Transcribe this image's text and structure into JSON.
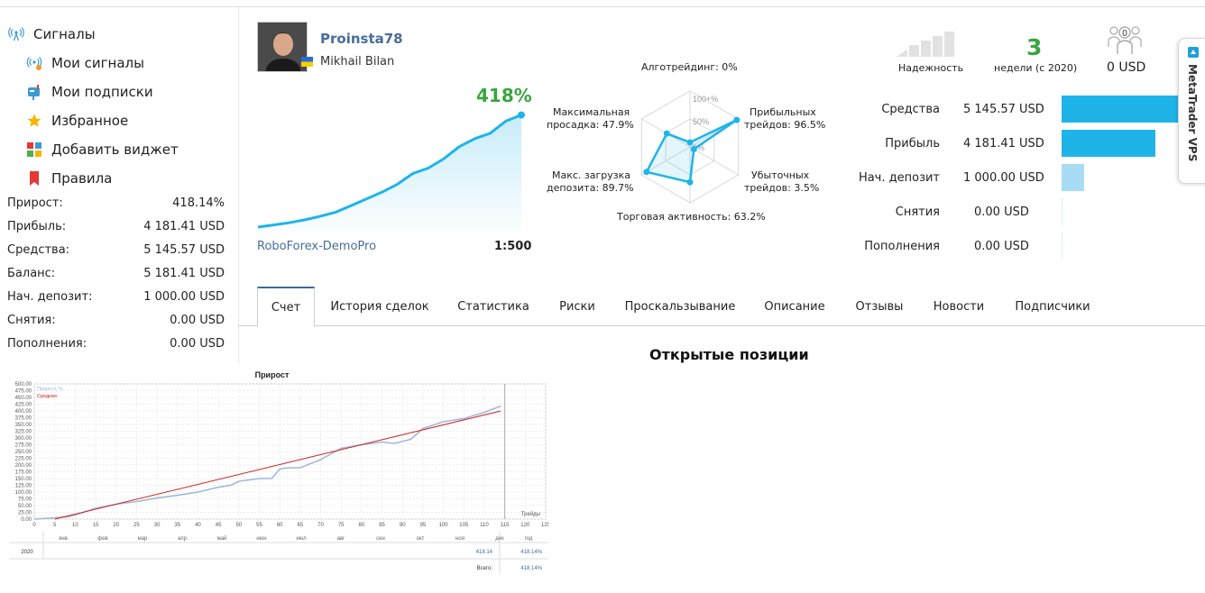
{
  "nav": {
    "signals": "Сигналы",
    "my_signals": "Мои сигналы",
    "my_subscriptions": "Мои подписки",
    "favorites": "Избранное",
    "add_widget": "Добавить виджет",
    "rules": "Правила"
  },
  "left_stats": [
    {
      "label": "Прирост:",
      "value": "418.14%"
    },
    {
      "label": "Прибыль:",
      "value": "4 181.41 USD"
    },
    {
      "label": "Средства:",
      "value": "5 145.57 USD"
    },
    {
      "label": "Баланс:",
      "value": "5 181.41 USD"
    },
    {
      "label": "Нач. депозит:",
      "value": "1 000.00 USD"
    },
    {
      "label": "Снятия:",
      "value": "0.00 USD"
    },
    {
      "label": "Пополнения:",
      "value": "0.00 USD"
    }
  ],
  "profile": {
    "username": "Proinsta78",
    "real_name": "Mikhail Bilan",
    "growth": "418%",
    "broker": "RoboForex-DemoPro",
    "leverage": "1:500"
  },
  "mini_chart": {
    "values": [
      0,
      8,
      16,
      27,
      40,
      55,
      80,
      105,
      130,
      160,
      200,
      220,
      255,
      300,
      330,
      350,
      395,
      418
    ]
  },
  "radar": {
    "algo": "Алготрейдинг: 0%",
    "profit_trades_1": "Прибыльных",
    "profit_trades_2": "трейдов: 96.5%",
    "loss_trades_1": "Убыточных",
    "loss_trades_2": "трейдов: 3.5%",
    "activity": "Торговая активность: 63.2%",
    "load_1": "Макс. загрузка",
    "load_2": "депозита: 89.7%",
    "drawdown_1": "Максимальная",
    "drawdown_2": "просадка: 47.9%",
    "scale_100": "100+%",
    "scale_50": "50%",
    "scale_0": "0%",
    "values": [
      0,
      96.5,
      3.5,
      63.2,
      89.7,
      47.9
    ]
  },
  "reliability": {
    "label": "Надежность",
    "level": 0
  },
  "weeks": {
    "value": "3",
    "label": "недели (с 2020)"
  },
  "subscribers": {
    "count": "0",
    "amount": "0 USD"
  },
  "finance": [
    {
      "label": "Средства",
      "value": "5 145.57 USD",
      "fraction": 1.0,
      "color": "#1fb4e8"
    },
    {
      "label": "Прибыль",
      "value": "4 181.41 USD",
      "fraction": 0.81,
      "color": "#1fb4e8"
    },
    {
      "label": "Нач. депозит",
      "value": "1 000.00 USD",
      "fraction": 0.19,
      "color": "#a7dcf4"
    },
    {
      "label": "Снятия",
      "value": "0.00 USD",
      "fraction": 0,
      "color": "#a7dcf4"
    },
    {
      "label": "Пополнения",
      "value": "0.00 USD",
      "fraction": 0,
      "color": "#a7dcf4"
    }
  ],
  "vps": {
    "label": "MetaTrader VPS"
  },
  "tabs": [
    {
      "label": "Счет",
      "active": true
    },
    {
      "label": "История сделок"
    },
    {
      "label": "Статистика"
    },
    {
      "label": "Риски"
    },
    {
      "label": "Проскальзывание"
    },
    {
      "label": "Описание"
    },
    {
      "label": "Отзывы"
    },
    {
      "label": "Новости"
    },
    {
      "label": "Подписчики"
    }
  ],
  "section_title": "Открытые позиции",
  "chart_data": {
    "type": "line",
    "title": "Прирост",
    "xlabel": "Трейды",
    "ylim": [
      0,
      500
    ],
    "xlim": [
      0,
      125
    ],
    "yticks": [
      "0.00",
      "25.00",
      "50.00",
      "75.00",
      "100.00",
      "125.00",
      "150.00",
      "175.00",
      "200.00",
      "225.00",
      "250.00",
      "275.00",
      "300.00",
      "325.00",
      "350.00",
      "375.00",
      "400.00",
      "425.00",
      "450.00",
      "475.00",
      "500.00"
    ],
    "xticks": [
      "0",
      "5",
      "10",
      "15",
      "20",
      "25",
      "30",
      "35",
      "40",
      "45",
      "50",
      "55",
      "60",
      "65",
      "70",
      "75",
      "80",
      "85",
      "90",
      "95",
      "100",
      "105",
      "110",
      "115",
      "120",
      "125"
    ],
    "series": [
      {
        "name": "Прирост, %",
        "color": "#9fb8dc",
        "x": [
          0,
          5,
          8,
          10,
          15,
          20,
          25,
          30,
          35,
          40,
          45,
          48,
          50,
          55,
          58,
          60,
          62,
          65,
          70,
          75,
          80,
          85,
          88,
          92,
          95,
          100,
          105,
          110,
          114
        ],
        "y": [
          0,
          5,
          8,
          15,
          40,
          55,
          65,
          78,
          88,
          100,
          118,
          125,
          140,
          150,
          150,
          185,
          190,
          190,
          220,
          262,
          275,
          285,
          280,
          295,
          335,
          360,
          372,
          395,
          418
        ]
      },
      {
        "name": "Среднее",
        "color": "#d42020",
        "x": [
          5,
          114
        ],
        "y": [
          0,
          400
        ]
      }
    ],
    "months": [
      "янв",
      "фев",
      "мар",
      "апр",
      "май",
      "июн",
      "июл",
      "авг",
      "сен",
      "окт",
      "ноя",
      "дек",
      "год"
    ],
    "year_row": {
      "year": "2020",
      "dec": "418.14",
      "total": "418.14%"
    },
    "total_row": {
      "label": "Всего:",
      "value": "418.14%"
    }
  }
}
